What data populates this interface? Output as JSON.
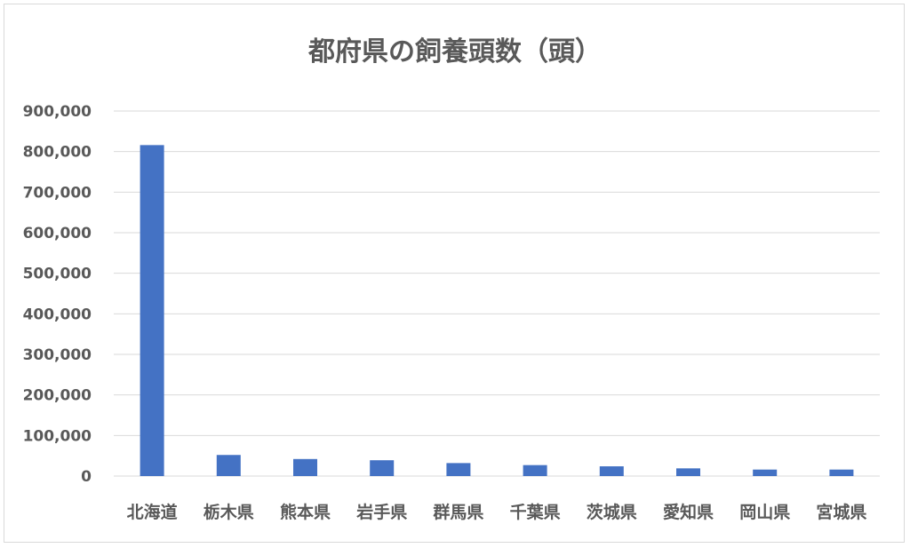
{
  "chart_data": {
    "type": "bar",
    "title": "都府県の飼養頭数（頭）",
    "xlabel": "",
    "ylabel": "",
    "categories": [
      "北海道",
      "栃木県",
      "熊本県",
      "岩手県",
      "群馬県",
      "千葉県",
      "茨城県",
      "愛知県",
      "岡山県",
      "宮城県"
    ],
    "values": [
      816000,
      52000,
      42000,
      39000,
      32000,
      27000,
      24000,
      19000,
      16000,
      16000
    ],
    "ylim": [
      0,
      900000
    ],
    "yticks": [
      0,
      100000,
      200000,
      300000,
      400000,
      500000,
      600000,
      700000,
      800000,
      900000
    ],
    "ytick_labels": [
      "0",
      "100,000",
      "200,000",
      "300,000",
      "400,000",
      "500,000",
      "600,000",
      "700,000",
      "800,000",
      "900,000"
    ],
    "grid": true,
    "legend": "none",
    "bar_color": "#4472c4",
    "grid_color": "#d9d9d9"
  }
}
